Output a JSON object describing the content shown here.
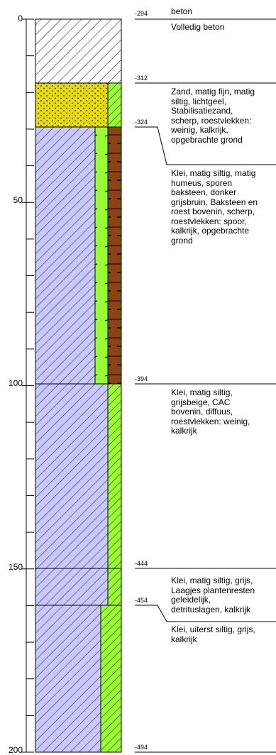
{
  "depth_ticks": [
    "0",
    "50",
    "100",
    "150",
    "200"
  ],
  "levels": [
    "-294",
    "-312",
    "-324",
    "-394",
    "-444",
    "-454",
    "-494"
  ],
  "layers": [
    {
      "title": "beton",
      "description": [
        "Volledig beton"
      ]
    },
    {
      "title": "",
      "description": [
        "Zand, matig fijn, matig",
        "siltig, lichtgeel,",
        "Stabilisatiezand,",
        "scherp, roestvlekken:",
        "weinig, kalkrijk,",
        "opgebrachte grond"
      ]
    },
    {
      "title": "",
      "description": [
        "Klei, matig siltig, matig",
        "humeus, sporen",
        "baksteen, donker",
        "grijsbruin, Baksteen en",
        "roest bovenin, scherp,",
        "roestvlekken: spoor,",
        "kalkrijk, opgebrachte",
        "grond"
      ]
    },
    {
      "title": "",
      "description": [
        "Klei, matig siltig,",
        "grijsbeige, CAC",
        "bovenin, diffuus,",
        "roestvlekken: weinig,",
        "kalkrijk"
      ]
    },
    {
      "title": "",
      "description": [
        "Klei, matig siltig, grijs,",
        "Laagjes plantenresten",
        "geleidelijk,",
        "detrituslagen, kalkrijk"
      ]
    },
    {
      "title": "",
      "description": [
        "Klei, uiterst siltig, grijs,",
        "kalkrijk"
      ]
    }
  ],
  "colors": {
    "concrete": "#ffffff",
    "sand": "#e8dc00",
    "clay": "#c8c8ff",
    "green": "#99ff33",
    "brick": "#8b4513"
  }
}
